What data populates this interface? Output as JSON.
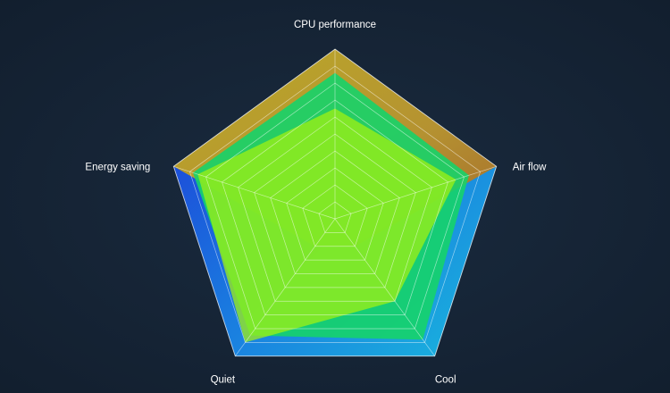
{
  "chart_data": {
    "type": "radar",
    "title": "",
    "axes": [
      "CPU performance",
      "Air flow",
      "Cool",
      "Quiet",
      "Energy saving"
    ],
    "range": [
      0,
      100
    ],
    "grid": true,
    "grid_levels": 10,
    "series": [
      {
        "values": [
          100,
          100,
          100,
          100,
          100
        ],
        "color": "#1aa9d8",
        "fill_type": "gradient-blue-cyan"
      },
      {
        "values": [
          100,
          100,
          20,
          20,
          100
        ],
        "color": "#b6a019",
        "fill_type": "gradient-gold-orange"
      },
      {
        "values": [
          86,
          83,
          88,
          85,
          88
        ],
        "color": "#16d36a",
        "fill_type": "green"
      },
      {
        "values": [
          65,
          75,
          60,
          90,
          85
        ],
        "color": "#a5f20e",
        "fill_type": "lime"
      }
    ]
  }
}
